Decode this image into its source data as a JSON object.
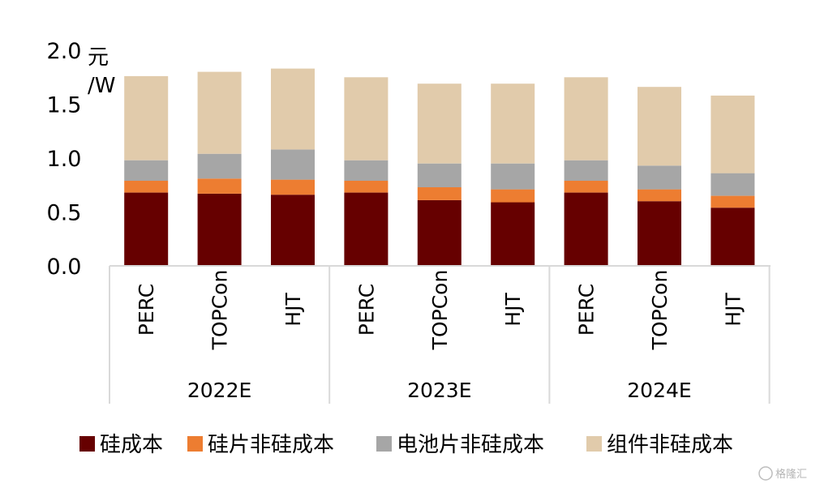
{
  "chart_data": {
    "type": "bar",
    "stacked": true,
    "unit_label_line1": "元",
    "unit_label_line2": "/W",
    "ylim": [
      0,
      2.0
    ],
    "yticks": [
      "0.0",
      "0.5",
      "1.0",
      "1.5",
      "2.0"
    ],
    "groups": [
      {
        "label": "2022E",
        "categories": [
          "PERC",
          "TOPCon",
          "HJT"
        ]
      },
      {
        "label": "2023E",
        "categories": [
          "PERC",
          "TOPCon",
          "HJT"
        ]
      },
      {
        "label": "2024E",
        "categories": [
          "PERC",
          "TOPCon",
          "HJT"
        ]
      }
    ],
    "series": [
      {
        "name": "硅成本",
        "color": "#660000",
        "values": [
          0.68,
          0.67,
          0.66,
          0.68,
          0.61,
          0.59,
          0.68,
          0.6,
          0.54
        ]
      },
      {
        "name": "硅片非硅成本",
        "color": "#ed7d31",
        "values": [
          0.11,
          0.14,
          0.14,
          0.11,
          0.12,
          0.12,
          0.11,
          0.11,
          0.11
        ]
      },
      {
        "name": "电池片非硅成本",
        "color": "#a6a6a6",
        "values": [
          0.19,
          0.23,
          0.28,
          0.19,
          0.22,
          0.24,
          0.19,
          0.22,
          0.21
        ]
      },
      {
        "name": "组件非硅成本",
        "color": "#e1cbab",
        "values": [
          0.78,
          0.76,
          0.75,
          0.77,
          0.74,
          0.74,
          0.77,
          0.73,
          0.72
        ]
      }
    ],
    "legend_position": "bottom"
  },
  "watermark": "格隆汇"
}
